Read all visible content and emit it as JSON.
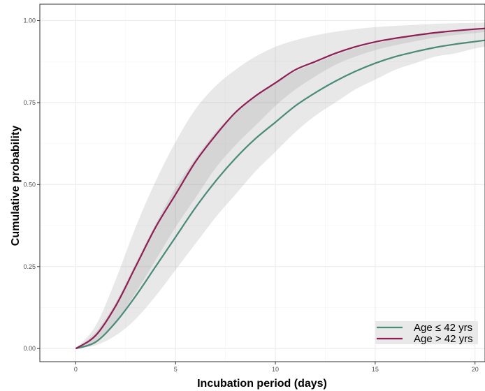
{
  "chart_data": {
    "type": "line",
    "title": "",
    "xlabel": "Incubation period (days)",
    "ylabel": "Cumulative probability",
    "xlim": [
      -1.8,
      20.5
    ],
    "ylim": [
      -0.04,
      1.05
    ],
    "x_ticks": [
      0,
      5,
      10,
      15,
      20
    ],
    "y_ticks": [
      0.0,
      0.25,
      0.5,
      0.75,
      1.0
    ],
    "x_tick_labels": [
      "0",
      "5",
      "10",
      "15",
      "20"
    ],
    "y_tick_labels": [
      "0.00",
      "0.25",
      "0.50",
      "0.75",
      "1.00"
    ],
    "grid": true,
    "legend_position": "bottom-right",
    "x": [
      0,
      1,
      2,
      3,
      4,
      5,
      6,
      7,
      8,
      9,
      10,
      11,
      12,
      13,
      14,
      15,
      16,
      17,
      18,
      19,
      20,
      20.5
    ],
    "series": [
      {
        "name": "Age ≤ 42 yrs",
        "color": "#4a8a78",
        "values": [
          0.0,
          0.02,
          0.08,
          0.16,
          0.25,
          0.34,
          0.43,
          0.51,
          0.58,
          0.64,
          0.69,
          0.74,
          0.78,
          0.815,
          0.845,
          0.87,
          0.89,
          0.905,
          0.918,
          0.928,
          0.936,
          0.94
        ],
        "ci_lower": [
          0.0,
          0.01,
          0.04,
          0.09,
          0.16,
          0.24,
          0.32,
          0.4,
          0.47,
          0.54,
          0.6,
          0.66,
          0.71,
          0.75,
          0.79,
          0.82,
          0.85,
          0.87,
          0.89,
          0.9,
          0.915,
          0.92
        ],
        "ci_upper": [
          0.0,
          0.05,
          0.14,
          0.26,
          0.38,
          0.49,
          0.58,
          0.66,
          0.72,
          0.77,
          0.81,
          0.845,
          0.87,
          0.895,
          0.915,
          0.93,
          0.945,
          0.955,
          0.962,
          0.968,
          0.972,
          0.974
        ]
      },
      {
        "name": "Age > 42 yrs",
        "color": "#8e1f55",
        "values": [
          0.0,
          0.04,
          0.13,
          0.25,
          0.37,
          0.47,
          0.57,
          0.65,
          0.72,
          0.77,
          0.81,
          0.85,
          0.875,
          0.9,
          0.92,
          0.935,
          0.946,
          0.955,
          0.963,
          0.969,
          0.974,
          0.976
        ],
        "ci_lower": [
          0.0,
          0.02,
          0.08,
          0.17,
          0.27,
          0.37,
          0.46,
          0.55,
          0.62,
          0.68,
          0.74,
          0.79,
          0.83,
          0.865,
          0.89,
          0.91,
          0.925,
          0.937,
          0.948,
          0.956,
          0.962,
          0.965
        ],
        "ci_upper": [
          0.0,
          0.07,
          0.21,
          0.37,
          0.51,
          0.63,
          0.73,
          0.8,
          0.85,
          0.89,
          0.92,
          0.94,
          0.955,
          0.966,
          0.974,
          0.98,
          0.984,
          0.987,
          0.99,
          0.992,
          0.993,
          0.994
        ]
      }
    ]
  }
}
